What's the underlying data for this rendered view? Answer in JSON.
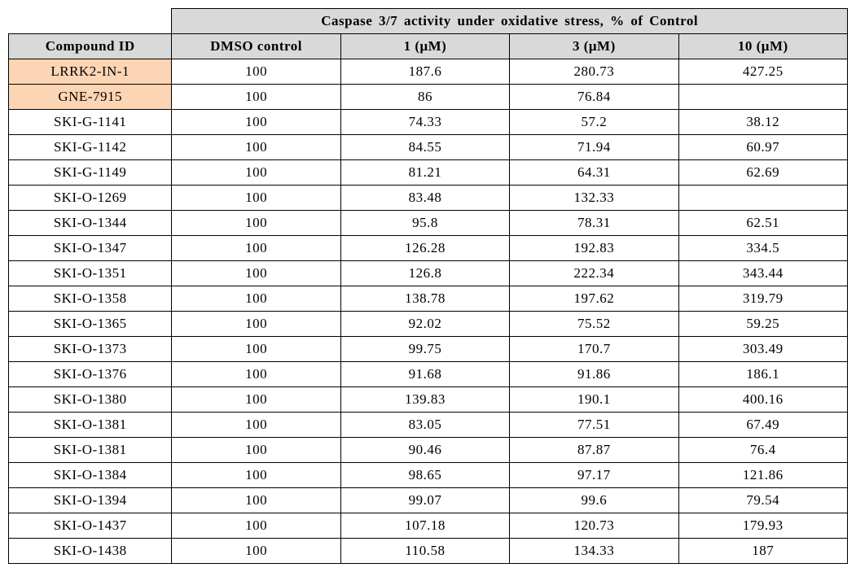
{
  "table": {
    "header_title": "Caspase 3/7 activity under oxidative stress, %  of Control",
    "columns": [
      "Compound  ID",
      "DMSO control",
      "1 (μM)",
      "3 (μM)",
      "10 (μM)"
    ],
    "rows": [
      {
        "id": "LRRK2-IN-1",
        "c1": "100",
        "c2": "187.6",
        "c3": "280.73",
        "c4": "427.25",
        "hl": true
      },
      {
        "id": "GNE-7915",
        "c1": "100",
        "c2": "86",
        "c3": "76.84",
        "c4": "",
        "hl": true
      },
      {
        "id": "SKI-G-1141",
        "c1": "100",
        "c2": "74.33",
        "c3": "57.2",
        "c4": "38.12",
        "hl": false
      },
      {
        "id": "SKI-G-1142",
        "c1": "100",
        "c2": "84.55",
        "c3": "71.94",
        "c4": "60.97",
        "hl": false
      },
      {
        "id": "SKI-G-1149",
        "c1": "100",
        "c2": "81.21",
        "c3": "64.31",
        "c4": "62.69",
        "hl": false
      },
      {
        "id": "SKI-O-1269",
        "c1": "100",
        "c2": "83.48",
        "c3": "132.33",
        "c4": "",
        "hl": false
      },
      {
        "id": "SKI-O-1344",
        "c1": "100",
        "c2": "95.8",
        "c3": "78.31",
        "c4": "62.51",
        "hl": false
      },
      {
        "id": "SKI-O-1347",
        "c1": "100",
        "c2": "126.28",
        "c3": "192.83",
        "c4": "334.5",
        "hl": false
      },
      {
        "id": "SKI-O-1351",
        "c1": "100",
        "c2": "126.8",
        "c3": "222.34",
        "c4": "343.44",
        "hl": false
      },
      {
        "id": "SKI-O-1358",
        "c1": "100",
        "c2": "138.78",
        "c3": "197.62",
        "c4": "319.79",
        "hl": false
      },
      {
        "id": "SKI-O-1365",
        "c1": "100",
        "c2": "92.02",
        "c3": "75.52",
        "c4": "59.25",
        "hl": false
      },
      {
        "id": "SKI-O-1373",
        "c1": "100",
        "c2": "99.75",
        "c3": "170.7",
        "c4": "303.49",
        "hl": false
      },
      {
        "id": "SKI-O-1376",
        "c1": "100",
        "c2": "91.68",
        "c3": "91.86",
        "c4": "186.1",
        "hl": false
      },
      {
        "id": "SKI-O-1380",
        "c1": "100",
        "c2": "139.83",
        "c3": "190.1",
        "c4": "400.16",
        "hl": false
      },
      {
        "id": "SKI-O-1381",
        "c1": "100",
        "c2": "83.05",
        "c3": "77.51",
        "c4": "67.49",
        "hl": false
      },
      {
        "id": "SKI-O-1381",
        "c1": "100",
        "c2": "90.46",
        "c3": "87.87",
        "c4": "76.4",
        "hl": false
      },
      {
        "id": "SKI-O-1384",
        "c1": "100",
        "c2": "98.65",
        "c3": "97.17",
        "c4": "121.86",
        "hl": false
      },
      {
        "id": "SKI-O-1394",
        "c1": "100",
        "c2": "99.07",
        "c3": "99.6",
        "c4": "79.54",
        "hl": false
      },
      {
        "id": "SKI-O-1437",
        "c1": "100",
        "c2": "107.18",
        "c3": "120.73",
        "c4": "179.93",
        "hl": false
      },
      {
        "id": "SKI-O-1438",
        "c1": "100",
        "c2": "110.58",
        "c3": "134.33",
        "c4": "187",
        "hl": false
      }
    ],
    "colors": {
      "header_bg": "#d9d9d9",
      "highlight_bg": "#fcd5b4",
      "border": "#000000",
      "text": "#000000",
      "background": "#ffffff"
    },
    "font_size_pt": 12
  }
}
